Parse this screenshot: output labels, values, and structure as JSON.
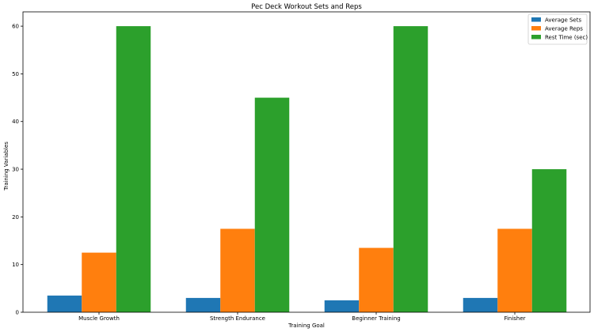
{
  "chart_data": {
    "type": "bar",
    "title": "Pec Deck Workout Sets and Reps",
    "xlabel": "Training Goal",
    "ylabel": "Training Variables",
    "categories": [
      "Muscle Growth",
      "Strength Endurance",
      "Beginner Training",
      "Finisher"
    ],
    "series": [
      {
        "name": "Average Sets",
        "color": "#1f77b4",
        "values": [
          3.5,
          3,
          2.5,
          3
        ]
      },
      {
        "name": "Average Reps",
        "color": "#ff7f0e",
        "values": [
          12.5,
          17.5,
          13.5,
          17.5
        ]
      },
      {
        "name": "Rest Time (sec)",
        "color": "#2ca02c",
        "values": [
          60,
          45,
          60,
          30
        ]
      }
    ],
    "ylim": [
      0,
      63
    ],
    "yticks": [
      0,
      10,
      20,
      30,
      40,
      50,
      60
    ],
    "grid": false,
    "legend_position": "top-right"
  }
}
